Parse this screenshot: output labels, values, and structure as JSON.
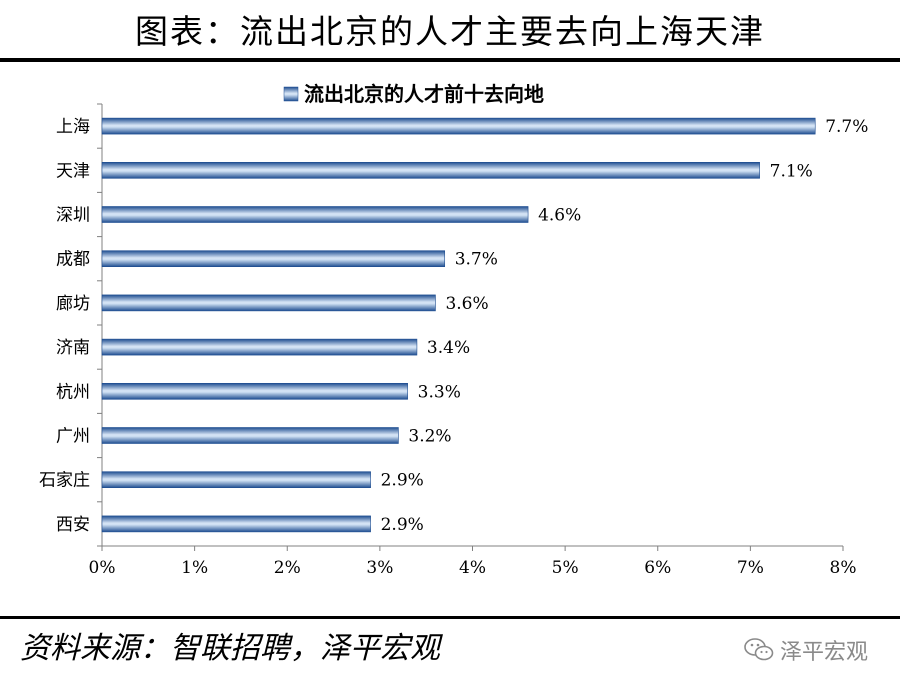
{
  "header": {
    "title": "图表：流出北京的人才主要去向上海天津"
  },
  "footer": {
    "source": "资料来源：智联招聘，泽平宏观"
  },
  "watermark": {
    "text": "泽平宏观",
    "icon": "wechat-icon"
  },
  "chart_data": {
    "type": "bar",
    "orientation": "horizontal",
    "title": "",
    "xlabel": "",
    "ylabel": "",
    "categories": [
      "上海",
      "天津",
      "深圳",
      "成都",
      "廊坊",
      "济南",
      "杭州",
      "广州",
      "石家庄",
      "西安"
    ],
    "series": [
      {
        "name": "流出北京的人才前十去向地",
        "values": [
          7.7,
          7.1,
          4.6,
          3.7,
          3.6,
          3.4,
          3.3,
          3.2,
          2.9,
          2.9
        ],
        "labels": [
          "7.7%",
          "7.1%",
          "4.6%",
          "3.7%",
          "3.6%",
          "3.4%",
          "3.3%",
          "3.2%",
          "2.9%",
          "2.9%"
        ],
        "color": "#3b6fb6"
      }
    ],
    "xlim": [
      0,
      8
    ],
    "xticks": [
      0,
      1,
      2,
      3,
      4,
      5,
      6,
      7,
      8
    ],
    "xtick_labels": [
      "0%",
      "1%",
      "2%",
      "3%",
      "4%",
      "5%",
      "6%",
      "7%",
      "8%"
    ],
    "grid": false,
    "legend": "top-center"
  }
}
